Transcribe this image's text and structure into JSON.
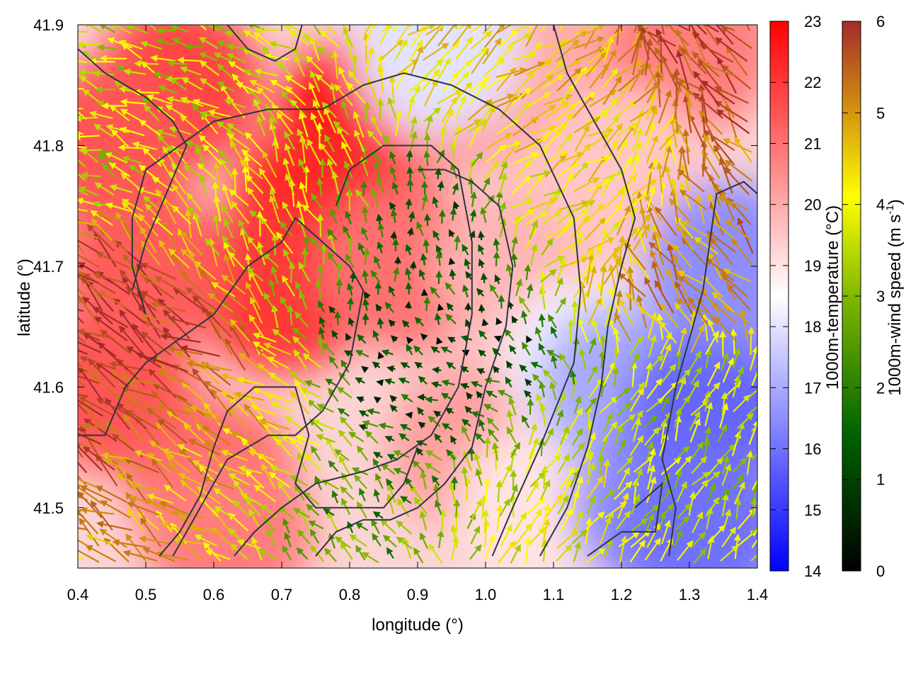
{
  "chart_data": {
    "type": "heatmap",
    "overlay": "vector-field",
    "xlabel": "longitude (°)",
    "ylabel": "latitude (°)",
    "xlim": [
      0.4,
      1.4
    ],
    "ylim": [
      41.45,
      41.9
    ],
    "xticks": [
      "0.4",
      "0.5",
      "0.6",
      "0.7",
      "0.8",
      "0.9",
      "1.0",
      "1.1",
      "1.2",
      "1.3",
      "1.4"
    ],
    "yticks": [
      "41.5",
      "41.6",
      "41.7",
      "41.8",
      "41.9"
    ],
    "grid": false,
    "temperature_colorbar": {
      "label": "1000m-temperature (°C)",
      "range": [
        14,
        23
      ],
      "ticks": [
        "14",
        "15",
        "16",
        "17",
        "18",
        "19",
        "20",
        "21",
        "22",
        "23"
      ],
      "colors": [
        "#0000ff",
        "#ffffff",
        "#ff0000"
      ]
    },
    "windspeed_colorbar": {
      "label_main": "1000m-wind speed (m s",
      "label_sup": "-1",
      "label_tail": ")",
      "range": [
        0,
        6
      ],
      "ticks": [
        "0",
        "1",
        "2",
        "3",
        "4",
        "5",
        "6"
      ],
      "colors": [
        "#000000",
        "#006400",
        "#7fb800",
        "#ffff00",
        "#d08a10",
        "#a52a2a"
      ]
    },
    "temperature_regions": [
      {
        "lon": 0.82,
        "lat": 41.82,
        "value": 22.8
      },
      {
        "lon": 0.75,
        "lat": 41.75,
        "value": 22.3
      },
      {
        "lon": 0.7,
        "lat": 41.68,
        "value": 22.0
      },
      {
        "lon": 0.55,
        "lat": 41.85,
        "value": 21.8
      },
      {
        "lon": 0.45,
        "lat": 41.8,
        "value": 21.5
      },
      {
        "lon": 0.45,
        "lat": 41.6,
        "value": 21.5
      },
      {
        "lon": 0.6,
        "lat": 41.52,
        "value": 21.2
      },
      {
        "lon": 0.5,
        "lat": 41.7,
        "value": 21.4
      },
      {
        "lon": 0.88,
        "lat": 41.7,
        "value": 21.0
      },
      {
        "lon": 0.95,
        "lat": 41.85,
        "value": 20.5
      },
      {
        "lon": 0.98,
        "lat": 41.55,
        "value": 20.2
      },
      {
        "lon": 1.05,
        "lat": 41.7,
        "value": 19.8
      },
      {
        "lon": 1.1,
        "lat": 41.85,
        "value": 20.0
      },
      {
        "lon": 1.08,
        "lat": 41.5,
        "value": 19.0
      },
      {
        "lon": 1.3,
        "lat": 41.88,
        "value": 20.8
      },
      {
        "lon": 1.2,
        "lat": 41.78,
        "value": 19.5
      },
      {
        "lon": 1.15,
        "lat": 41.62,
        "value": 18.3
      },
      {
        "lon": 1.2,
        "lat": 41.6,
        "value": 17.0
      },
      {
        "lon": 1.25,
        "lat": 41.5,
        "value": 16.5
      },
      {
        "lon": 1.33,
        "lat": 41.58,
        "value": 15.8
      },
      {
        "lon": 1.36,
        "lat": 41.7,
        "value": 16.5
      },
      {
        "lon": 1.32,
        "lat": 41.48,
        "value": 16.0
      },
      {
        "lon": 0.93,
        "lat": 41.88,
        "value": 18.0
      },
      {
        "lon": 0.62,
        "lat": 41.48,
        "value": 20.8
      }
    ],
    "wind_regions": [
      {
        "lon": 0.48,
        "lat": 41.62,
        "dir_deg": 145,
        "speed": 5.8
      },
      {
        "lon": 0.62,
        "lat": 41.55,
        "dir_deg": 150,
        "speed": 4.5
      },
      {
        "lon": 0.7,
        "lat": 41.75,
        "dir_deg": 115,
        "speed": 3.5
      },
      {
        "lon": 0.88,
        "lat": 41.7,
        "dir_deg": 100,
        "speed": 1.0
      },
      {
        "lon": 0.95,
        "lat": 41.58,
        "dir_deg": 160,
        "speed": 0.5
      },
      {
        "lon": 1.05,
        "lat": 41.52,
        "dir_deg": 60,
        "speed": 3.5
      },
      {
        "lon": 1.18,
        "lat": 41.75,
        "dir_deg": 30,
        "speed": 3.5
      },
      {
        "lon": 1.3,
        "lat": 41.72,
        "dir_deg": 140,
        "speed": 5.0
      },
      {
        "lon": 1.1,
        "lat": 41.85,
        "dir_deg": 40,
        "speed": 4.0
      },
      {
        "lon": 1.35,
        "lat": 41.88,
        "dir_deg": 135,
        "speed": 5.8
      },
      {
        "lon": 0.5,
        "lat": 41.85,
        "dir_deg": 160,
        "speed": 3.0
      },
      {
        "lon": 0.8,
        "lat": 41.5,
        "dir_deg": 130,
        "speed": 2.0
      },
      {
        "lon": 1.3,
        "lat": 41.55,
        "dir_deg": 60,
        "speed": 3.0
      }
    ],
    "contours": [
      [
        [
          0.52,
          41.46
        ],
        [
          0.55,
          41.48
        ],
        [
          0.58,
          41.51
        ],
        [
          0.6,
          41.55
        ],
        [
          0.62,
          41.58
        ],
        [
          0.66,
          41.6
        ],
        [
          0.72,
          41.6
        ],
        [
          0.74,
          41.56
        ],
        [
          0.72,
          41.52
        ],
        [
          0.75,
          41.5
        ],
        [
          0.85,
          41.5
        ],
        [
          0.88,
          41.52
        ],
        [
          0.9,
          41.55
        ]
      ],
      [
        [
          0.4,
          41.56
        ],
        [
          0.44,
          41.56
        ],
        [
          0.47,
          41.6
        ],
        [
          0.5,
          41.62
        ],
        [
          0.55,
          41.64
        ],
        [
          0.6,
          41.66
        ],
        [
          0.65,
          41.7
        ],
        [
          0.7,
          41.72
        ],
        [
          0.72,
          41.74
        ],
        [
          0.76,
          41.72
        ],
        [
          0.8,
          41.7
        ],
        [
          0.82,
          41.68
        ],
        [
          0.8,
          41.62
        ],
        [
          0.78,
          41.6
        ],
        [
          0.76,
          41.58
        ],
        [
          0.72,
          41.56
        ],
        [
          0.68,
          41.56
        ],
        [
          0.62,
          41.54
        ],
        [
          0.58,
          41.5
        ],
        [
          0.54,
          41.46
        ]
      ],
      [
        [
          0.5,
          41.66
        ],
        [
          0.48,
          41.7
        ],
        [
          0.48,
          41.74
        ],
        [
          0.5,
          41.78
        ],
        [
          0.55,
          41.8
        ],
        [
          0.6,
          41.82
        ],
        [
          0.68,
          41.83
        ],
        [
          0.76,
          41.83
        ],
        [
          0.82,
          41.85
        ],
        [
          0.88,
          41.86
        ],
        [
          0.95,
          41.85
        ],
        [
          1.02,
          41.83
        ],
        [
          1.08,
          41.8
        ],
        [
          1.13,
          41.74
        ],
        [
          1.14,
          41.68
        ],
        [
          1.13,
          41.62
        ],
        [
          1.08,
          41.55
        ],
        [
          1.04,
          41.5
        ],
        [
          1.01,
          41.46
        ]
      ],
      [
        [
          0.63,
          41.46
        ],
        [
          0.66,
          41.48
        ],
        [
          0.7,
          41.5
        ],
        [
          0.75,
          41.52
        ],
        [
          0.82,
          41.53
        ],
        [
          0.87,
          41.54
        ],
        [
          0.92,
          41.56
        ],
        [
          0.96,
          41.6
        ],
        [
          0.98,
          41.66
        ],
        [
          0.98,
          41.72
        ],
        [
          0.96,
          41.78
        ],
        [
          0.92,
          41.8
        ],
        [
          0.85,
          41.8
        ],
        [
          0.8,
          41.78
        ],
        [
          0.78,
          41.75
        ]
      ],
      [
        [
          0.75,
          41.46
        ],
        [
          0.78,
          41.48
        ],
        [
          0.82,
          41.49
        ],
        [
          0.86,
          41.49
        ],
        [
          0.9,
          41.5
        ],
        [
          0.94,
          41.52
        ],
        [
          0.98,
          41.55
        ],
        [
          1.0,
          41.6
        ],
        [
          1.03,
          41.65
        ],
        [
          1.04,
          41.7
        ],
        [
          1.02,
          41.75
        ],
        [
          0.98,
          41.77
        ],
        [
          0.94,
          41.78
        ],
        [
          0.9,
          41.78
        ]
      ],
      [
        [
          1.08,
          41.46
        ],
        [
          1.12,
          41.5
        ],
        [
          1.15,
          41.55
        ],
        [
          1.17,
          41.6
        ],
        [
          1.18,
          41.65
        ],
        [
          1.2,
          41.7
        ],
        [
          1.22,
          41.74
        ],
        [
          1.2,
          41.78
        ],
        [
          1.16,
          41.82
        ],
        [
          1.12,
          41.86
        ],
        [
          1.1,
          41.9
        ]
      ],
      [
        [
          1.27,
          41.46
        ],
        [
          1.28,
          41.5
        ],
        [
          1.26,
          41.54
        ],
        [
          1.28,
          41.6
        ],
        [
          1.3,
          41.64
        ],
        [
          1.32,
          41.68
        ],
        [
          1.33,
          41.72
        ],
        [
          1.34,
          41.76
        ],
        [
          1.38,
          41.77
        ],
        [
          1.4,
          41.76
        ]
      ],
      [
        [
          1.15,
          41.46
        ],
        [
          1.2,
          41.48
        ],
        [
          1.25,
          41.48
        ],
        [
          1.26,
          41.52
        ],
        [
          1.22,
          41.5
        ]
      ],
      [
        [
          0.62,
          41.9
        ],
        [
          0.65,
          41.88
        ],
        [
          0.69,
          41.87
        ],
        [
          0.72,
          41.88
        ],
        [
          0.73,
          41.9
        ]
      ],
      [
        [
          0.4,
          41.88
        ],
        [
          0.44,
          41.86
        ],
        [
          0.5,
          41.84
        ],
        [
          0.54,
          41.82
        ],
        [
          0.56,
          41.8
        ],
        [
          0.53,
          41.76
        ],
        [
          0.5,
          41.72
        ],
        [
          0.48,
          41.68
        ]
      ]
    ]
  }
}
